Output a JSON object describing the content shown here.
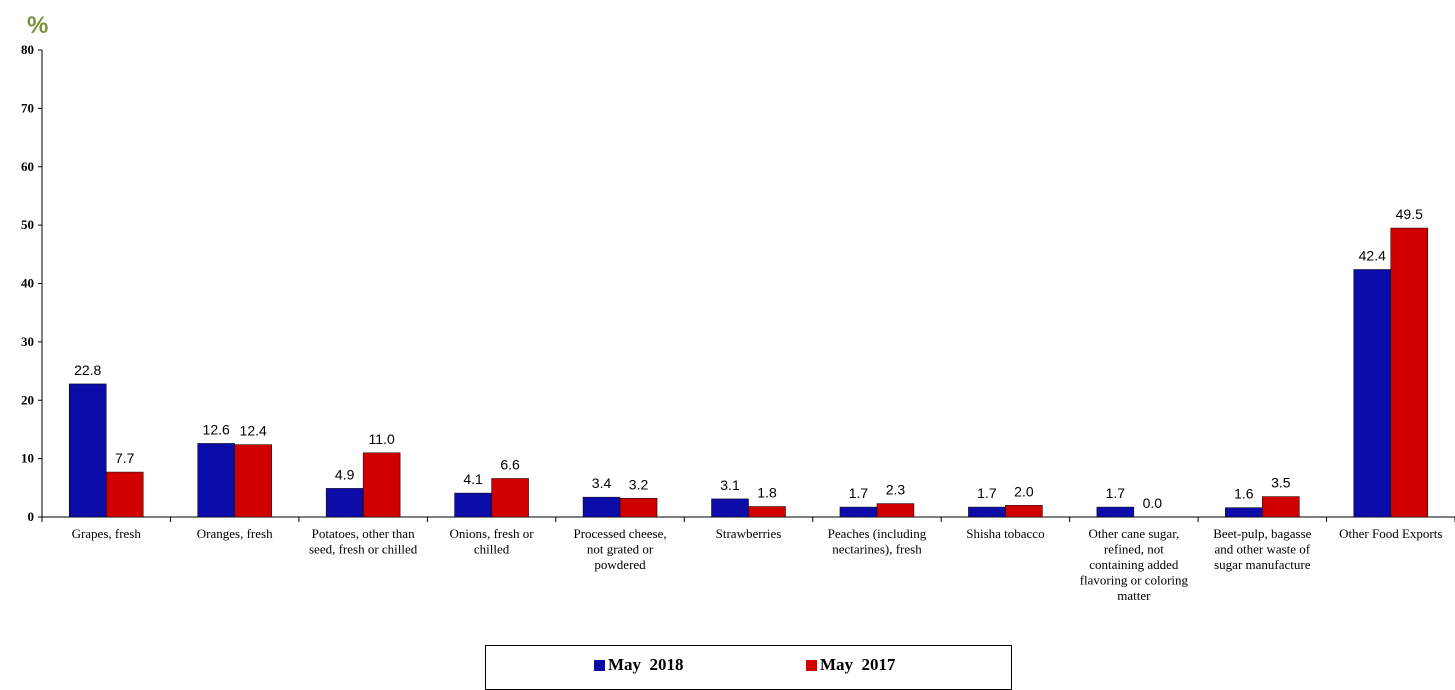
{
  "chart_data": {
    "type": "bar",
    "unit_label": "%",
    "categories": [
      [
        "Grapes, fresh"
      ],
      [
        "Oranges, fresh"
      ],
      [
        "Potatoes, other than",
        "seed, fresh or chilled"
      ],
      [
        "Onions, fresh or",
        "chilled"
      ],
      [
        "Processed cheese,",
        "not grated or",
        "powdered"
      ],
      [
        "Strawberries"
      ],
      [
        "Peaches (including",
        "nectarines), fresh"
      ],
      [
        "Shisha tobacco"
      ],
      [
        "Other cane sugar,",
        "refined, not",
        "containing added",
        "flavoring or coloring",
        "matter"
      ],
      [
        "Beet-pulp, bagasse",
        "and other waste of",
        "sugar manufacture"
      ],
      [
        "Other Food  Exports"
      ]
    ],
    "series": [
      {
        "name": "May  2018",
        "color": "#0c0ca8",
        "values": [
          22.8,
          12.6,
          4.9,
          4.1,
          3.4,
          3.1,
          1.7,
          1.7,
          1.7,
          1.6,
          42.4
        ],
        "labels": [
          "22.8",
          "12.6",
          "4.9",
          "4.1",
          "3.4",
          "3.1",
          "1.7",
          "1.7",
          "1.7",
          "1.6",
          "42.4"
        ]
      },
      {
        "name": "May  2017",
        "color": "#d00000",
        "values": [
          7.7,
          12.4,
          11.0,
          6.6,
          3.2,
          1.8,
          2.3,
          2.0,
          0.0,
          3.5,
          49.5
        ],
        "labels": [
          "7.7",
          "12.4",
          "11.0",
          "6.6",
          "3.2",
          "1.8",
          "2.3",
          "2.0",
          "0.0",
          "3.5",
          "49.5"
        ]
      }
    ],
    "ylim": [
      0,
      80
    ],
    "yticks": [
      0,
      10,
      20,
      30,
      40,
      50,
      60,
      70,
      80
    ],
    "grid": false,
    "legend_position": "bottom"
  }
}
